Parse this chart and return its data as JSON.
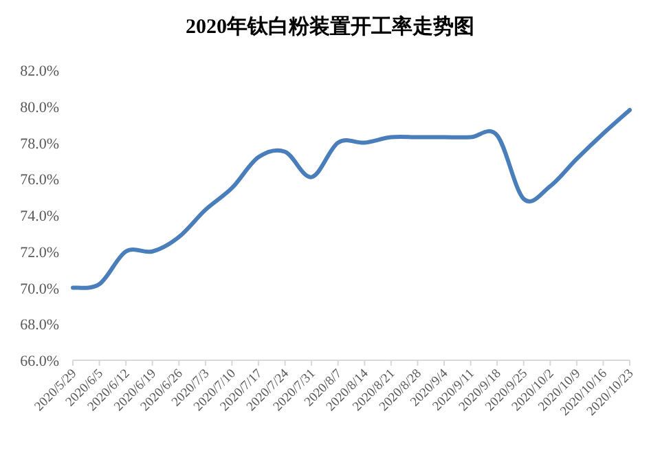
{
  "chart_data": {
    "type": "line",
    "title": "2020年钛白粉装置开工率走势图",
    "categories": [
      "2020/5/29",
      "2020/6/5",
      "2020/6/12",
      "2020/6/19",
      "2020/6/26",
      "2020/7/3",
      "2020/7/10",
      "2020/7/17",
      "2020/7/24",
      "2020/7/31",
      "2020/8/7",
      "2020/8/14",
      "2020/8/21",
      "2020/8/28",
      "2020/9/4",
      "2020/9/11",
      "2020/9/18",
      "2020/9/25",
      "2020/10/2",
      "2020/10/9",
      "2020/10/16",
      "2020/10/23"
    ],
    "series": [
      {
        "color": "#4a7ebb",
        "values": [
          70.0,
          70.2,
          72.0,
          72.0,
          72.8,
          74.3,
          75.5,
          77.2,
          77.5,
          76.1,
          78.0,
          78.0,
          78.3,
          78.3,
          78.3,
          78.3,
          78.4,
          74.9,
          75.6,
          77.1,
          78.5,
          79.8
        ]
      }
    ],
    "ylim": [
      66,
      82
    ],
    "yticks": [
      {
        "value": 66,
        "label": "66.0%"
      },
      {
        "value": 68,
        "label": "68.0%"
      },
      {
        "value": 70,
        "label": "70.0%"
      },
      {
        "value": 72,
        "label": "72.0%"
      },
      {
        "value": 74,
        "label": "74.0%"
      },
      {
        "value": 76,
        "label": "76.0%"
      },
      {
        "value": 78,
        "label": "78.0%"
      },
      {
        "value": 80,
        "label": "80.0%"
      },
      {
        "value": 82,
        "label": "82.0%"
      }
    ],
    "grid": false,
    "marker": "none",
    "line_style": "solid"
  }
}
